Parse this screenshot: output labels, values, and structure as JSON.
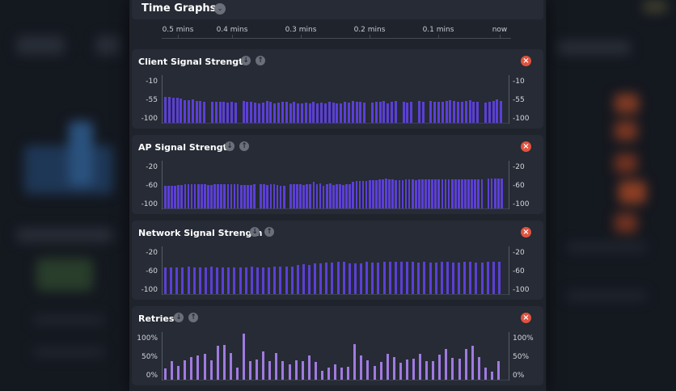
{
  "header": {
    "title": "Time Graphs"
  },
  "timeline": {
    "ticks": [
      "0.5 mins",
      "0.4 mins",
      "0.3 mins",
      "0.2 mins",
      "0.1 mins",
      "now"
    ]
  },
  "colors": {
    "bar_signal": "#5b3fd6",
    "bar_retries": "#a07ae0",
    "close": "#e0533f",
    "panel": "#1e232c",
    "card": "#262b35"
  },
  "icons": {
    "collapse": "chevron-down-icon",
    "move_down": "arrow-down-icon",
    "move_up": "arrow-up-icon",
    "remove": "close-icon"
  },
  "graphs": [
    {
      "title": "Client Signal Strength",
      "scale_min": -100,
      "scale_max": 0,
      "y_labels": [
        "-10",
        "-55",
        "-100"
      ],
      "values": [
        -43,
        -44,
        -45,
        -46,
        -48,
        -50,
        -51,
        -49,
        -52,
        -53,
        -54,
        null,
        -54,
        -55,
        -55,
        -54,
        -56,
        -55,
        -56,
        null,
        -53,
        -55,
        -54,
        -56,
        -57,
        -56,
        -53,
        -55,
        -57,
        -56,
        -55,
        -54,
        -57,
        -55,
        -58,
        -57,
        -56,
        -57,
        -55,
        -58,
        -56,
        -57,
        -55,
        -56,
        -58,
        -57,
        -54,
        -56,
        -53,
        -55,
        -54,
        -56,
        null,
        -56,
        -55,
        -54,
        -53,
        -57,
        -55,
        -52,
        null,
        -54,
        -56,
        -55,
        null,
        -53,
        -54,
        null,
        -52,
        -54,
        -55,
        -54,
        -53,
        -51,
        -53,
        -55,
        -54,
        -52,
        -51,
        -54,
        -55,
        null,
        -56,
        -55,
        -53,
        -49,
        -52
      ]
    },
    {
      "title": "AP Signal Strength",
      "scale_min": -100,
      "scale_max": 0,
      "y_labels": [
        "-20",
        "-60",
        "-100"
      ],
      "values": [
        -50,
        -50,
        -50,
        -50,
        -49,
        -49,
        -48,
        -47,
        -47,
        -47,
        -47,
        -48,
        -48,
        -49,
        -49,
        -48,
        -48,
        -47,
        -47,
        -47,
        -48,
        -47,
        -48,
        -49,
        -49,
        -49,
        -49,
        -48,
        null,
        -48,
        -48,
        -49,
        -48,
        -48,
        -49,
        -50,
        -50,
        null,
        -48,
        -48,
        -48,
        -48,
        -49,
        -48,
        -48,
        -42,
        -48,
        -45,
        -50,
        -48,
        -46,
        -49,
        -48,
        -48,
        -49,
        -48,
        -48,
        -42,
        -41,
        -40,
        -40,
        -40,
        -39,
        -39,
        -38,
        -37,
        -36,
        -35,
        -36,
        -37,
        -38,
        -39,
        -38,
        -37,
        -37,
        -37,
        -38,
        -37,
        -36,
        -36,
        -36,
        -36,
        -36,
        -36,
        -36,
        -36,
        -36,
        -36,
        -36,
        -36,
        -36,
        -36,
        -36,
        -36,
        -36,
        -36,
        -36,
        null,
        -35,
        -35,
        -35,
        -35,
        -35
      ]
    },
    {
      "title": "Network Signal Strength",
      "scale_min": -100,
      "scale_max": 0,
      "y_labels": [
        "-20",
        "-60",
        "-100"
      ],
      "values": [
        -42,
        -42,
        -42,
        -42,
        -41,
        -42,
        -42,
        -42,
        -41,
        -42,
        -42,
        -42,
        -42,
        -42,
        -42,
        -41,
        -42,
        -42,
        -42,
        -41,
        -41,
        -40,
        -40,
        -36,
        -35,
        -37,
        -33,
        -33,
        -31,
        -32,
        -30,
        -30,
        -33,
        -34,
        -34,
        -30,
        -31,
        -31,
        -30,
        -30,
        -29,
        -30,
        -30,
        -30,
        -31,
        -30,
        -31,
        -31,
        -30,
        -30,
        -31,
        -31,
        -30,
        -30,
        -31,
        -31,
        -30,
        -30,
        -30
      ]
    },
    {
      "title": "Retries",
      "scale_min": 0,
      "scale_max": 100,
      "y_labels": [
        "100%",
        "50%",
        "0%"
      ],
      "values": [
        24,
        40,
        30,
        42,
        50,
        52,
        56,
        42,
        74,
        75,
        58,
        26,
        100,
        40,
        44,
        62,
        40,
        58,
        40,
        34,
        42,
        40,
        52,
        38,
        20,
        26,
        34,
        26,
        28,
        78,
        52,
        42,
        30,
        38,
        56,
        50,
        36,
        44,
        46,
        56,
        40,
        40,
        54,
        66,
        48,
        46,
        66,
        74,
        50,
        26,
        18,
        40
      ]
    }
  ]
}
